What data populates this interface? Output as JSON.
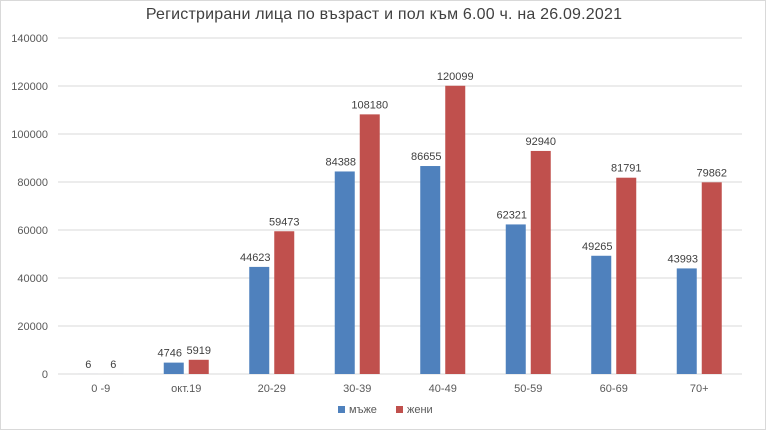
{
  "chart_data": {
    "type": "bar",
    "title": "Регистрирани лица по възраст и пол към 6.00 ч. на 26.09.2021",
    "categories": [
      "0 -9",
      "окт.19",
      "20-29",
      "30-39",
      "40-49",
      "50-59",
      "60-69",
      "70+"
    ],
    "series": [
      {
        "name": "мъже",
        "color": "#4f81bd",
        "values": [
          6,
          4746,
          44623,
          84388,
          86655,
          62321,
          49265,
          43993
        ]
      },
      {
        "name": "жени",
        "color": "#c0504d",
        "values": [
          6,
          5919,
          59473,
          108180,
          120099,
          92940,
          81791,
          79862
        ]
      }
    ],
    "ylim": [
      0,
      140000
    ],
    "yticks": [
      0,
      20000,
      40000,
      60000,
      80000,
      100000,
      120000,
      140000
    ],
    "grid": true,
    "legend": "bottom-center",
    "xlabel": "",
    "ylabel": ""
  }
}
